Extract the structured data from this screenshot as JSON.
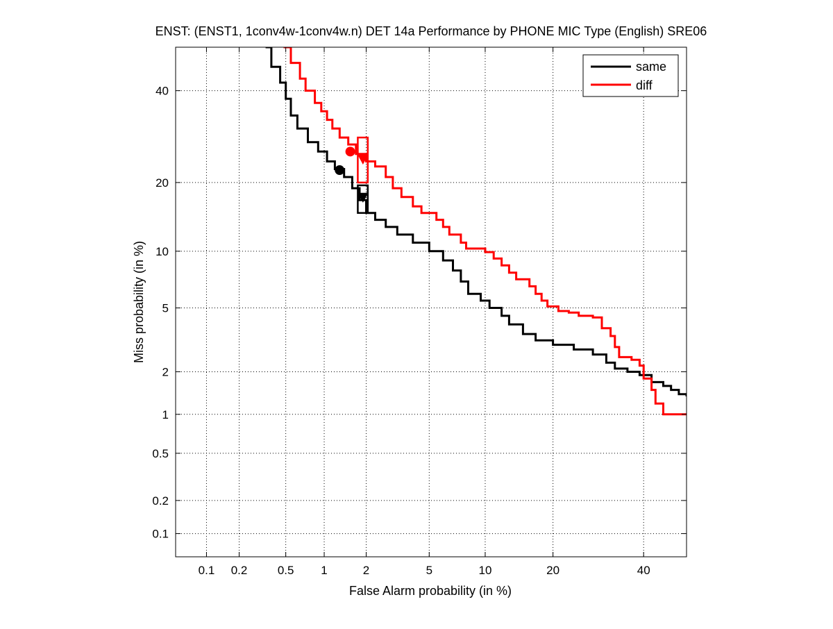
{
  "chart_data": {
    "type": "line",
    "title": "ENST: (ENST1, 1conv4w-1conv4w.n) DET 14a Performance by PHONE MIC Type (English) SRE06",
    "xlabel": "False Alarm probability (in %)",
    "ylabel": "Miss probability (in %)",
    "x_scale": "normal-deviate (probit)",
    "y_scale": "normal-deviate (probit)",
    "xlim": [
      0.05,
      51
    ],
    "ylim": [
      0.06,
      51
    ],
    "x_ticks": [
      {
        "value": 0.1,
        "label": "0.1"
      },
      {
        "value": 0.2,
        "label": "0.2"
      },
      {
        "value": 0.5,
        "label": "0.5"
      },
      {
        "value": 1,
        "label": "1"
      },
      {
        "value": 2,
        "label": "2"
      },
      {
        "value": 5,
        "label": "5"
      },
      {
        "value": 10,
        "label": "10"
      },
      {
        "value": 20,
        "label": "20"
      },
      {
        "value": 40,
        "label": "40"
      }
    ],
    "y_ticks": [
      {
        "value": 0.1,
        "label": "0.1"
      },
      {
        "value": 0.2,
        "label": "0.2"
      },
      {
        "value": 0.5,
        "label": "0.5"
      },
      {
        "value": 1,
        "label": "1"
      },
      {
        "value": 2,
        "label": "2"
      },
      {
        "value": 5,
        "label": "5"
      },
      {
        "value": 10,
        "label": "10"
      },
      {
        "value": 20,
        "label": "20"
      },
      {
        "value": 40,
        "label": "40"
      }
    ],
    "grid": true,
    "legend_position": "top-right",
    "series": [
      {
        "name": "same",
        "color": "#000000",
        "points": [
          [
            0.34,
            51
          ],
          [
            0.38,
            46
          ],
          [
            0.45,
            42
          ],
          [
            0.5,
            38
          ],
          [
            0.55,
            34
          ],
          [
            0.62,
            31
          ],
          [
            0.75,
            28
          ],
          [
            0.9,
            26
          ],
          [
            1.05,
            24
          ],
          [
            1.2,
            22.5
          ],
          [
            1.4,
            21
          ],
          [
            1.6,
            19
          ],
          [
            1.8,
            17
          ],
          [
            2.0,
            15
          ],
          [
            2.3,
            14
          ],
          [
            2.7,
            13
          ],
          [
            3.2,
            12
          ],
          [
            4.0,
            11
          ],
          [
            5.0,
            10
          ],
          [
            6.0,
            9
          ],
          [
            6.8,
            8
          ],
          [
            7.5,
            7
          ],
          [
            8.2,
            6
          ],
          [
            9.5,
            5.5
          ],
          [
            10.5,
            5
          ],
          [
            12,
            4.5
          ],
          [
            13,
            4
          ],
          [
            15,
            3.5
          ],
          [
            17,
            3.2
          ],
          [
            20,
            3.0
          ],
          [
            24,
            2.8
          ],
          [
            28,
            2.6
          ],
          [
            31,
            2.3
          ],
          [
            33,
            2.1
          ],
          [
            36,
            2.0
          ],
          [
            39,
            1.9
          ],
          [
            42,
            1.7
          ],
          [
            45,
            1.6
          ],
          [
            47,
            1.5
          ],
          [
            49,
            1.4
          ],
          [
            51,
            1.35
          ]
        ],
        "act_point": [
          1.9,
          17.5
        ],
        "min_point": [
          1.3,
          22.3
        ],
        "conf_box": {
          "x": [
            1.75,
            2.05
          ],
          "y": [
            15,
            19.5
          ]
        }
      },
      {
        "name": "diff",
        "color": "#ff0000",
        "points": [
          [
            0.48,
            51
          ],
          [
            0.55,
            47
          ],
          [
            0.65,
            43
          ],
          [
            0.72,
            40
          ],
          [
            0.85,
            37
          ],
          [
            0.95,
            35
          ],
          [
            1.05,
            33
          ],
          [
            1.15,
            31
          ],
          [
            1.3,
            29
          ],
          [
            1.5,
            27.5
          ],
          [
            1.7,
            25.5
          ],
          [
            2.0,
            24
          ],
          [
            2.3,
            23
          ],
          [
            2.7,
            21
          ],
          [
            3.0,
            19
          ],
          [
            3.4,
            17.5
          ],
          [
            4.0,
            16
          ],
          [
            4.5,
            15
          ],
          [
            5.5,
            14
          ],
          [
            6.0,
            13
          ],
          [
            6.5,
            12
          ],
          [
            7.5,
            11
          ],
          [
            8.0,
            10.3
          ],
          [
            10,
            9.9
          ],
          [
            11,
            9.2
          ],
          [
            12,
            8.5
          ],
          [
            13,
            7.8
          ],
          [
            14,
            7.2
          ],
          [
            16,
            6.6
          ],
          [
            17,
            6.0
          ],
          [
            18,
            5.5
          ],
          [
            19,
            5.1
          ],
          [
            21,
            4.8
          ],
          [
            23,
            4.7
          ],
          [
            25,
            4.5
          ],
          [
            28,
            4.4
          ],
          [
            30,
            3.8
          ],
          [
            32,
            3.4
          ],
          [
            33,
            2.9
          ],
          [
            34,
            2.5
          ],
          [
            37,
            2.4
          ],
          [
            39,
            2.2
          ],
          [
            40,
            1.8
          ],
          [
            42,
            1.5
          ],
          [
            43,
            1.2
          ],
          [
            45,
            1.0
          ],
          [
            51,
            1.0
          ]
        ],
        "act_point": [
          1.9,
          24.5
        ],
        "min_point": [
          1.55,
          26
        ],
        "conf_box": {
          "x": [
            1.75,
            2.05
          ],
          "y": [
            20,
            29
          ]
        }
      }
    ]
  }
}
